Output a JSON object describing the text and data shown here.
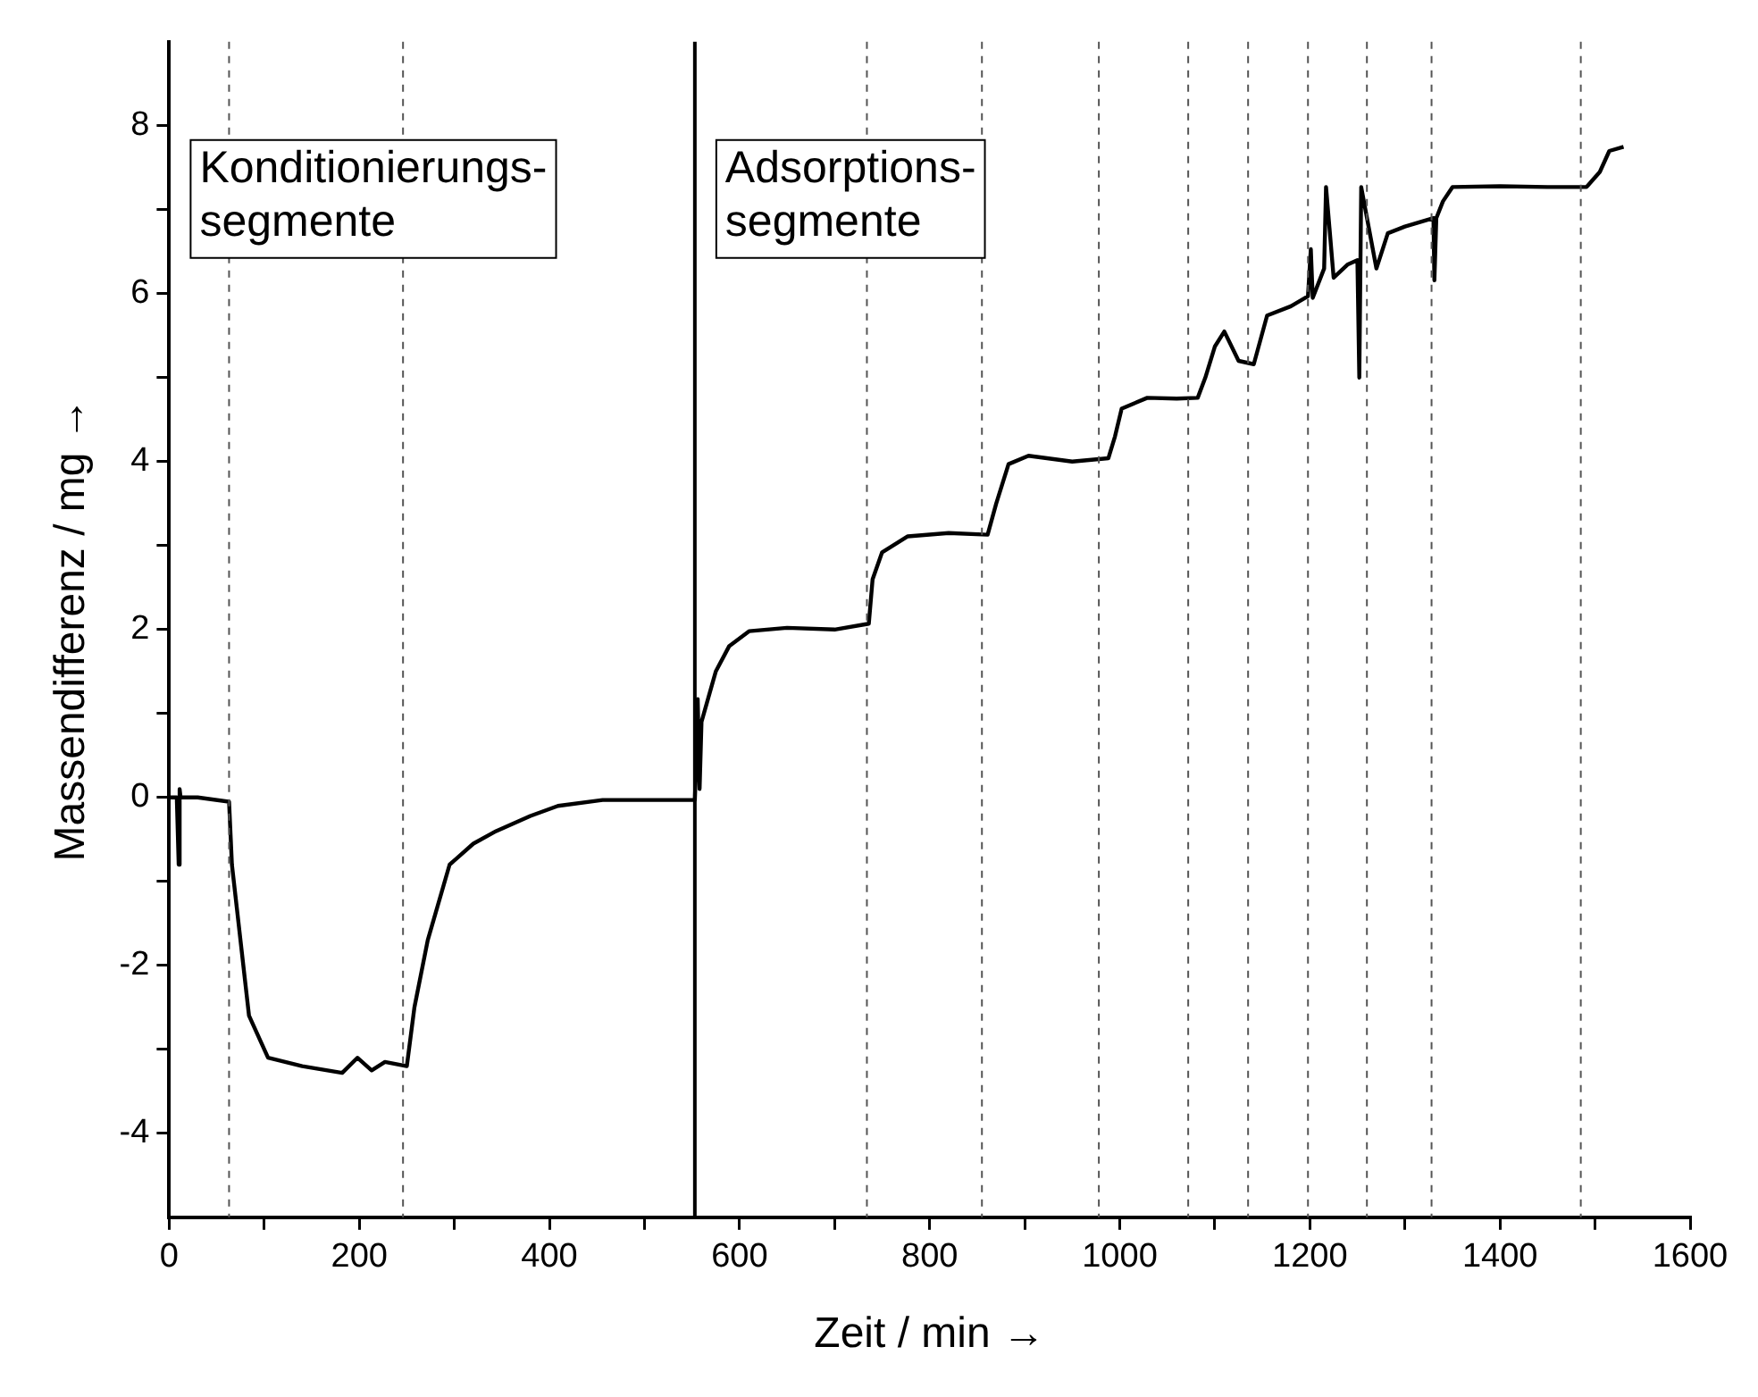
{
  "chart_data": {
    "type": "line",
    "xlabel": "Zeit / min →",
    "ylabel": "Massendifferenz / mg →",
    "xlim": [
      0,
      1600
    ],
    "ylim": [
      -5,
      9
    ],
    "xticks": [
      0,
      {
        "value": 100,
        "label": null
      },
      200,
      {
        "value": 300,
        "label": null
      },
      400,
      {
        "value": 500,
        "label": null
      },
      600,
      {
        "value": 700,
        "label": null
      },
      800,
      {
        "value": 900,
        "label": null
      },
      1000,
      {
        "value": 1100,
        "label": null
      },
      1200,
      {
        "value": 1300,
        "label": null
      },
      1400,
      {
        "value": 1500,
        "label": null
      },
      1600
    ],
    "yticks": [
      -4,
      {
        "value": -3,
        "label": null
      },
      -2,
      {
        "value": -1,
        "label": null
      },
      0,
      {
        "value": 1,
        "label": null
      },
      2,
      {
        "value": 3,
        "label": null
      },
      4,
      {
        "value": 5,
        "label": null
      },
      6,
      {
        "value": 7,
        "label": null
      },
      8
    ],
    "grid": false,
    "legend": false,
    "marker": "none",
    "line_style": "solid",
    "series": [
      {
        "color": "#000000",
        "x": [
          0,
          8,
          10,
          11,
          12,
          30,
          63,
          66,
          84,
          104,
          140,
          182,
          198,
          213,
          227,
          250,
          258,
          272,
          295,
          320,
          344,
          380,
          409,
          456,
          500,
          553,
          554,
          556,
          558,
          560,
          575,
          589,
          610,
          650,
          700,
          736,
          740,
          750,
          777,
          820,
          861,
          870,
          883,
          904,
          950,
          988,
          995,
          1002,
          1029,
          1060,
          1082,
          1090,
          1100,
          1110,
          1125,
          1141,
          1155,
          1180,
          1198,
          1201,
          1203,
          1215,
          1217,
          1225,
          1240,
          1250,
          1252,
          1254,
          1270,
          1282,
          1300,
          1330,
          1331,
          1333,
          1340,
          1350,
          1400,
          1450,
          1491,
          1505,
          1515,
          1530
        ],
        "values": [
          0,
          0,
          -0.8,
          0.1,
          0,
          0,
          -0.05,
          -0.8,
          -2.6,
          -3.1,
          -3.2,
          -3.28,
          -3.1,
          -3.25,
          -3.15,
          -3.2,
          -2.5,
          -1.7,
          -0.8,
          -0.55,
          -0.4,
          -0.22,
          -0.1,
          -0.03,
          -0.03,
          -0.03,
          0.3,
          1.17,
          0.1,
          0.9,
          1.5,
          1.8,
          1.98,
          2.02,
          2.0,
          2.07,
          2.6,
          2.92,
          3.11,
          3.15,
          3.13,
          3.5,
          3.97,
          4.07,
          4.0,
          4.04,
          4.3,
          4.63,
          4.76,
          4.75,
          4.76,
          5.0,
          5.37,
          5.55,
          5.2,
          5.16,
          5.74,
          5.85,
          5.97,
          6.53,
          5.95,
          6.3,
          7.27,
          6.19,
          6.35,
          6.4,
          5.0,
          7.27,
          6.3,
          6.72,
          6.8,
          6.9,
          6.16,
          6.9,
          7.1,
          7.27,
          7.28,
          7.27,
          7.27,
          7.45,
          7.7,
          7.75
        ]
      }
    ],
    "ref_lines": [
      {
        "axis": "x",
        "value": 63,
        "line_style": "dashed",
        "color": "#555555"
      },
      {
        "axis": "x",
        "value": 246,
        "line_style": "dashed",
        "color": "#555555"
      },
      {
        "axis": "x",
        "value": 553,
        "line_style": "solid",
        "color": "#000000"
      },
      {
        "axis": "x",
        "value": 734,
        "line_style": "dashed",
        "color": "#555555"
      },
      {
        "axis": "x",
        "value": 855,
        "line_style": "dashed",
        "color": "#555555"
      },
      {
        "axis": "x",
        "value": 978,
        "line_style": "dashed",
        "color": "#555555"
      },
      {
        "axis": "x",
        "value": 1072,
        "line_style": "dashed",
        "color": "#555555"
      },
      {
        "axis": "x",
        "value": 1135,
        "line_style": "dashed",
        "color": "#555555"
      },
      {
        "axis": "x",
        "value": 1198,
        "line_style": "dashed",
        "color": "#555555"
      },
      {
        "axis": "x",
        "value": 1260,
        "line_style": "dashed",
        "color": "#555555"
      },
      {
        "axis": "x",
        "value": 1328,
        "line_style": "dashed",
        "color": "#555555"
      },
      {
        "axis": "x",
        "value": 1485,
        "line_style": "dashed",
        "color": "#555555"
      }
    ],
    "annotations": [
      "Konditionierungs-\nsegmente",
      "Adsorptions-\nsegmente"
    ]
  }
}
